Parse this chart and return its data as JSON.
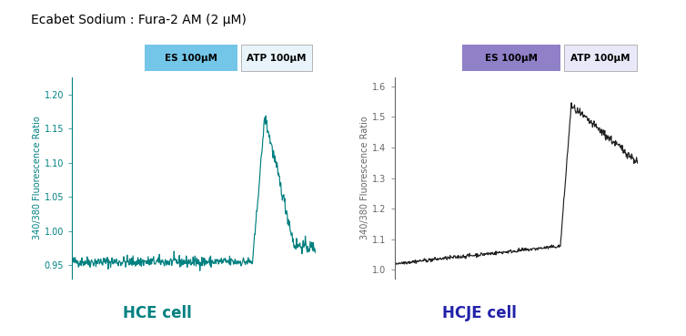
{
  "title": "Ecabet Sodium : Fura-2 AM (2 μM)",
  "title_fontsize": 10,
  "hce_label": "HCE cell",
  "hcje_label": "HCJE cell",
  "hce_color": "#008080",
  "hcje_color": "#222222",
  "ylabel": "340/380 Fluorescence Ratio",
  "ylabel_color_hce": "#008080",
  "ylabel_color_hcje": "#666666",
  "hce_ylim": [
    0.93,
    1.225
  ],
  "hcje_ylim": [
    0.97,
    1.63
  ],
  "hce_yticks": [
    0.95,
    1.0,
    1.05,
    1.1,
    1.15,
    1.2
  ],
  "hcje_yticks": [
    1.0,
    1.1,
    1.2,
    1.3,
    1.4,
    1.5,
    1.6
  ],
  "es_label": "ES 100μM",
  "atp_label": "ATP 100μM",
  "es_color_hce": "#74C6E8",
  "atp_color_hce": "#E8F4FA",
  "es_color_hcje": "#9080C8",
  "atp_color_hcje": "#E8E8F8",
  "n_points": 500,
  "label_fontsize": 12,
  "hcje_label_color": "#2222AA"
}
